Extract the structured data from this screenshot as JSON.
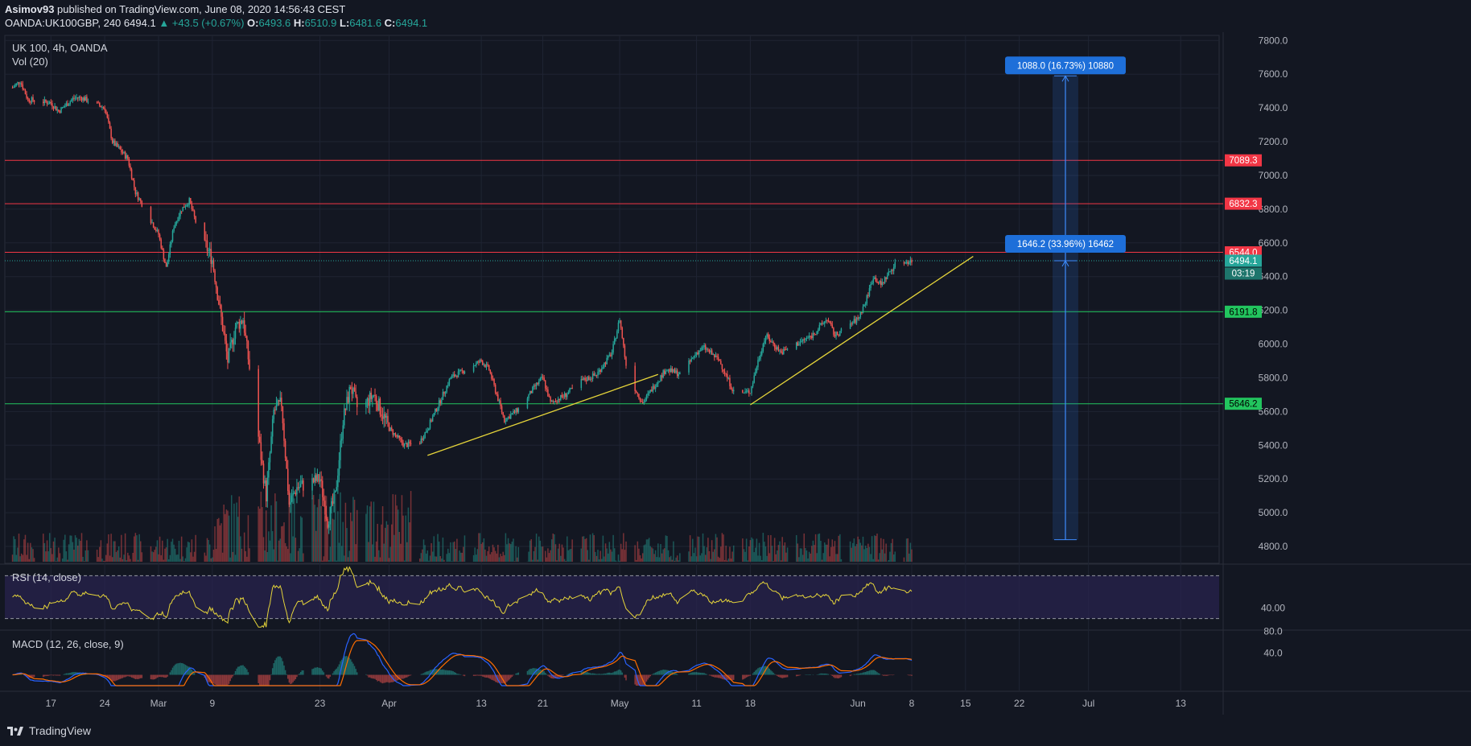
{
  "header": {
    "publisher": "Asimov93",
    "published_text": "published on TradingView.com, June 08, 2020 14:56:43 CEST",
    "symbol": "OANDA:UK100GBP, 240",
    "last": "6494.1",
    "change": "▲ +43.5 (+0.67%)",
    "open_label": "O:",
    "open": "6493.6",
    "high_label": "H:",
    "high": "6510.9",
    "low_label": "L:",
    "low": "6481.6",
    "close_label": "C:",
    "close": "6494.1"
  },
  "legend": {
    "title": "UK 100, 4h, OANDA",
    "volume": "Vol (20)",
    "rsi": "RSI (14, close)",
    "macd": "MACD (12, 26, close, 9)"
  },
  "footer": {
    "brand": "TradingView",
    "icon": "tradingview-logo-icon"
  },
  "colors": {
    "background": "#131722",
    "grid": "#1f2433",
    "up": "#26a69a",
    "down": "#ef5350",
    "resistance": "#f23645",
    "support": "#22c55e",
    "trendline": "#e6d53a",
    "rsi_line": "#e6d53a",
    "rsi_band": "#2a2350",
    "macd_line": "#2962ff",
    "signal_line": "#ff6d00",
    "projection": "#2a69c7"
  },
  "chart_data": {
    "type": "candlestick",
    "title": "UK 100, 4h, OANDA",
    "y_ticks": [
      4800,
      5000,
      5200,
      5400,
      5600,
      5800,
      6000,
      6200,
      6400,
      6600,
      6800,
      7000,
      7200,
      7400,
      7600,
      7800
    ],
    "y_tick_labels": [
      "4800.0",
      "5000.0",
      "5200.0",
      "5400.0",
      "5600.0",
      "5800.0",
      "6000.0",
      "6200.0",
      "6400.0",
      "6600.0",
      "6800.0",
      "7000.0",
      "7200.0",
      "7400.0",
      "7600.0",
      "7800.0"
    ],
    "ylim": [
      4700,
      7830
    ],
    "x_tick_labels": [
      "17",
      "24",
      "Mar",
      "9",
      "23",
      "Apr",
      "13",
      "21",
      "May",
      "11",
      "18",
      "Jun",
      "8",
      "15",
      "22",
      "Jul",
      "13"
    ],
    "x_tick_dates": [
      "2020-02-17",
      "2020-02-24",
      "2020-03-02",
      "2020-03-09",
      "2020-03-23",
      "2020-04-01",
      "2020-04-13",
      "2020-04-21",
      "2020-05-01",
      "2020-05-11",
      "2020-05-18",
      "2020-06-01",
      "2020-06-08",
      "2020-06-15",
      "2020-06-22",
      "2020-07-01",
      "2020-07-13"
    ],
    "xlim": [
      "2020-02-11",
      "2020-07-18"
    ],
    "price_path": [
      [
        "2020-02-12",
        7520
      ],
      [
        "2020-02-13",
        7560
      ],
      [
        "2020-02-14",
        7450
      ],
      [
        "2020-02-17",
        7430
      ],
      [
        "2020-02-18",
        7380
      ],
      [
        "2020-02-20",
        7460
      ],
      [
        "2020-02-21",
        7460
      ],
      [
        "2020-02-24",
        7400
      ],
      [
        "2020-02-25",
        7200
      ],
      [
        "2020-02-26",
        7150
      ],
      [
        "2020-02-27",
        7100
      ],
      [
        "2020-02-28",
        6900
      ],
      [
        "2020-03-02",
        6650
      ],
      [
        "2020-03-03",
        6450
      ],
      [
        "2020-03-04",
        6700
      ],
      [
        "2020-03-05",
        6800
      ],
      [
        "2020-03-06",
        6850
      ],
      [
        "2020-03-07",
        6700
      ],
      [
        "2020-03-09",
        6500
      ],
      [
        "2020-03-10",
        6200
      ],
      [
        "2020-03-11",
        5900
      ],
      [
        "2020-03-12",
        6100
      ],
      [
        "2020-03-13",
        6150
      ],
      [
        "2020-03-14",
        5800
      ],
      [
        "2020-03-16",
        5100
      ],
      [
        "2020-03-17",
        5600
      ],
      [
        "2020-03-18",
        5650
      ],
      [
        "2020-03-19",
        5050
      ],
      [
        "2020-03-20",
        5150
      ],
      [
        "2020-03-23",
        5200
      ],
      [
        "2020-03-24",
        4950
      ],
      [
        "2020-03-25",
        5100
      ],
      [
        "2020-03-26",
        5550
      ],
      [
        "2020-03-27",
        5750
      ],
      [
        "2020-03-28",
        5600
      ],
      [
        "2020-03-30",
        5700
      ],
      [
        "2020-04-01",
        5500
      ],
      [
        "2020-04-03",
        5400
      ],
      [
        "2020-04-05",
        5420
      ],
      [
        "2020-04-06",
        5500
      ],
      [
        "2020-04-07",
        5600
      ],
      [
        "2020-04-09",
        5800
      ],
      [
        "2020-04-13",
        5900
      ],
      [
        "2020-04-14",
        5850
      ],
      [
        "2020-04-16",
        5550
      ],
      [
        "2020-04-18",
        5620
      ],
      [
        "2020-04-20",
        5750
      ],
      [
        "2020-04-21",
        5800
      ],
      [
        "2020-04-22",
        5650
      ],
      [
        "2020-04-24",
        5700
      ],
      [
        "2020-04-26",
        5780
      ],
      [
        "2020-04-28",
        5820
      ],
      [
        "2020-04-30",
        5950
      ],
      [
        "2020-05-01",
        6150
      ],
      [
        "2020-05-02",
        5820
      ],
      [
        "2020-05-04",
        5650
      ],
      [
        "2020-05-05",
        5720
      ],
      [
        "2020-05-07",
        5850
      ],
      [
        "2020-05-09",
        5820
      ],
      [
        "2020-05-11",
        5950
      ],
      [
        "2020-05-12",
        5980
      ],
      [
        "2020-05-14",
        5900
      ],
      [
        "2020-05-15",
        5800
      ],
      [
        "2020-05-16",
        5700
      ],
      [
        "2020-05-18",
        5720
      ],
      [
        "2020-05-19",
        5900
      ],
      [
        "2020-05-20",
        6050
      ],
      [
        "2020-05-22",
        5950
      ],
      [
        "2020-05-24",
        6000
      ],
      [
        "2020-05-26",
        6050
      ],
      [
        "2020-05-28",
        6150
      ],
      [
        "2020-05-29",
        6050
      ],
      [
        "2020-06-01",
        6150
      ],
      [
        "2020-06-02",
        6250
      ],
      [
        "2020-06-03",
        6400
      ],
      [
        "2020-06-04",
        6350
      ],
      [
        "2020-06-05",
        6420
      ],
      [
        "2020-06-06",
        6480
      ],
      [
        "2020-06-08",
        6494
      ]
    ],
    "horizontal_levels": [
      {
        "value": 7089.3,
        "label": "7089.3",
        "kind": "resistance"
      },
      {
        "value": 6832.3,
        "label": "6832.3",
        "kind": "resistance"
      },
      {
        "value": 6544.0,
        "label": "6544.0",
        "kind": "resistance"
      },
      {
        "value": 6494.1,
        "label": "6494.1",
        "kind": "last-price",
        "countdown": "03:19"
      },
      {
        "value": 6191.8,
        "label": "6191.8",
        "kind": "support"
      },
      {
        "value": 5646.2,
        "label": "5646.2",
        "kind": "support"
      }
    ],
    "trendlines": [
      {
        "from": [
          "2020-04-06",
          5340
        ],
        "to": [
          "2020-05-06",
          5820
        ]
      },
      {
        "from": [
          "2020-05-18",
          5640
        ],
        "to": [
          "2020-06-16",
          6520
        ]
      }
    ],
    "projection": {
      "date": "2020-06-28",
      "bottom": 4840,
      "mid": 6494,
      "top": 7590,
      "upper_label": "1088.0 (16.73%) 10880",
      "lower_label": "1646.2 (33.96%) 16462"
    },
    "rsi": {
      "label": "RSI (14, close)",
      "upper": 70,
      "lower": 30,
      "tick_labels": [
        "40.00"
      ],
      "ylim": [
        20,
        80
      ]
    },
    "macd": {
      "label": "MACD (12, 26, close, 9)",
      "tick_labels": [
        "80.0",
        "40.0"
      ]
    }
  }
}
